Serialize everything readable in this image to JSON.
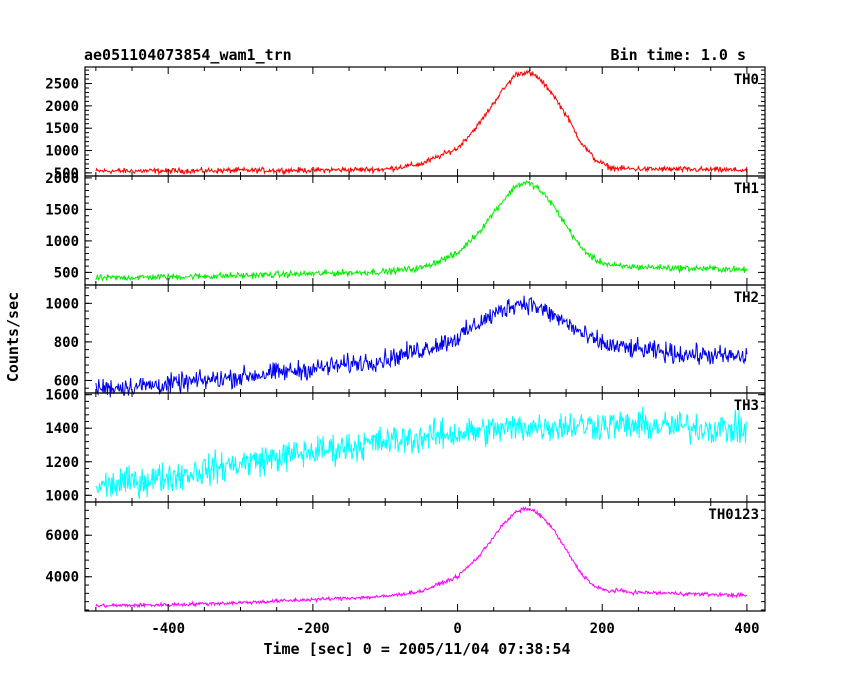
{
  "header": {
    "title": "ae051104073854_wam1_trn",
    "bin_time": "Bin time: 1.0 s"
  },
  "chart_data": {
    "type": "line",
    "xlabel": "Time [sec] 0 = 2005/11/04 07:38:54",
    "ylabel": "Counts/sec",
    "xlim": [
      -515,
      425
    ],
    "x_ticks": [
      -400,
      -200,
      0,
      200,
      400
    ],
    "panels": [
      {
        "name": "TH0",
        "color": "#ff0000",
        "ylim": [
          430,
          2870
        ],
        "y_ticks": [
          500,
          1000,
          1500,
          2000,
          2500
        ],
        "noise": 30,
        "x": [
          -500,
          -400,
          -300,
          -200,
          -100,
          -50,
          0,
          30,
          60,
          80,
          95,
          110,
          130,
          150,
          170,
          190,
          210,
          220,
          240,
          300,
          350,
          400
        ],
        "y": [
          540,
          545,
          555,
          560,
          580,
          700,
          1050,
          1600,
          2300,
          2700,
          2760,
          2650,
          2300,
          1800,
          1200,
          800,
          620,
          600,
          590,
          580,
          570,
          560
        ]
      },
      {
        "name": "TH1",
        "color": "#00ee00",
        "ylim": [
          300,
          2030
        ],
        "y_ticks": [
          500,
          1000,
          1500,
          2000
        ],
        "noise": 25,
        "x": [
          -500,
          -400,
          -300,
          -200,
          -100,
          -50,
          0,
          30,
          60,
          80,
          95,
          110,
          130,
          150,
          170,
          190,
          210,
          220,
          240,
          300,
          350,
          400
        ],
        "y": [
          410,
          430,
          450,
          480,
          510,
          570,
          800,
          1150,
          1600,
          1870,
          1930,
          1850,
          1600,
          1250,
          900,
          700,
          620,
          600,
          590,
          570,
          560,
          540
        ]
      },
      {
        "name": "TH2",
        "color": "#0000ee",
        "ylim": [
          535,
          1095
        ],
        "y_ticks": [
          600,
          800,
          1000
        ],
        "noise": 25,
        "x": [
          -500,
          -400,
          -300,
          -200,
          -100,
          -50,
          0,
          30,
          60,
          80,
          100,
          120,
          150,
          180,
          210,
          250,
          300,
          350,
          400
        ],
        "y": [
          560,
          580,
          620,
          660,
          710,
          760,
          820,
          900,
          960,
          1000,
          1000,
          960,
          900,
          820,
          780,
          760,
          740,
          730,
          720
        ]
      },
      {
        "name": "TH3",
        "color": "#00ffff",
        "ylim": [
          960,
          1610
        ],
        "y_ticks": [
          1000,
          1200,
          1400,
          1600
        ],
        "noise": 45,
        "x": [
          -500,
          -400,
          -300,
          -200,
          -100,
          0,
          100,
          200,
          300,
          400
        ],
        "y": [
          1050,
          1110,
          1190,
          1260,
          1320,
          1370,
          1410,
          1420,
          1410,
          1390
        ]
      },
      {
        "name": "TH0123",
        "color": "#ff00ff",
        "ylim": [
          2350,
          7600
        ],
        "y_ticks": [
          4000,
          6000
        ],
        "noise": 45,
        "x": [
          -500,
          -400,
          -300,
          -200,
          -100,
          -50,
          0,
          30,
          60,
          80,
          95,
          110,
          130,
          150,
          170,
          190,
          210,
          220,
          240,
          300,
          350,
          400
        ],
        "y": [
          2600,
          2650,
          2750,
          2900,
          3050,
          3300,
          4000,
          5000,
          6400,
          7100,
          7300,
          7100,
          6400,
          5300,
          4200,
          3500,
          3300,
          3350,
          3250,
          3200,
          3150,
          3100
        ]
      }
    ]
  }
}
